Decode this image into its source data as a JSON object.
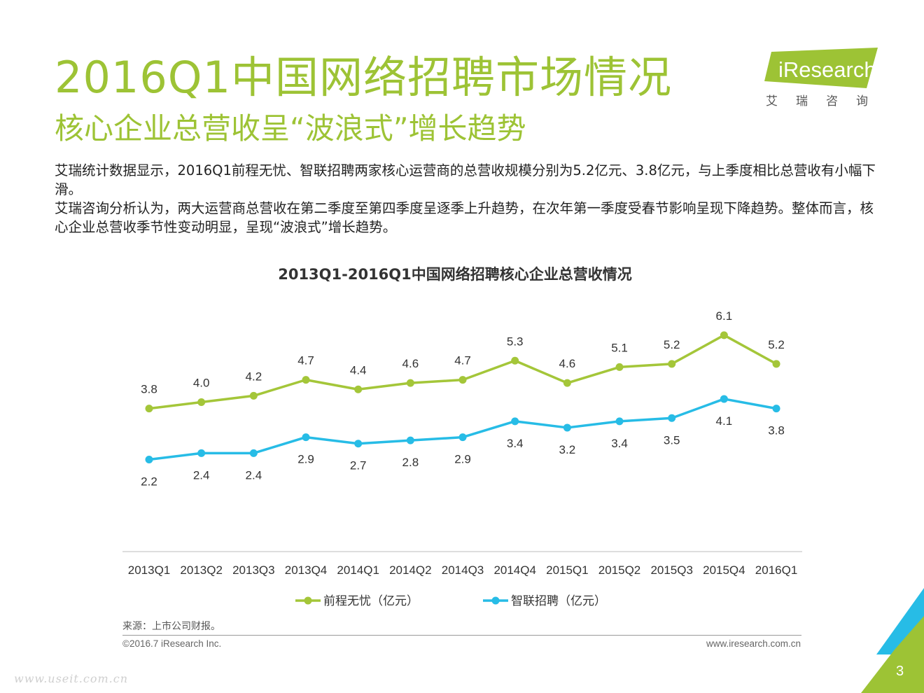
{
  "header": {
    "title": "2016Q1中国网络招聘市场情况",
    "subtitle": "核心企业总营收呈“波浪式”增长趋势"
  },
  "logo": {
    "brand": "iResearch",
    "subtext": "艾瑞咨询"
  },
  "paragraphs": {
    "p1": "艾瑞统计数据显示，2016Q1前程无忧、智联招聘两家核心运营商的总营收规模分别为5.2亿元、3.8亿元，与上季度相比总营收有小幅下滑。",
    "p2": "艾瑞咨询分析认为，两大运营商总营收在第二季度至第四季度呈逐季上升趋势，在次年第一季度受春节影响呈现下降趋势。整体而言，核心企业总营收季节性变动明显，呈现“波浪式”增长趋势。"
  },
  "colors": {
    "title_green": "#9dc335",
    "series1": "#a4c639",
    "series2": "#27bce6"
  },
  "chart_data": {
    "type": "line",
    "title": "2013Q1-2016Q1中国网络招聘核心企业总营收情况",
    "categories": [
      "2013Q1",
      "2013Q2",
      "2013Q3",
      "2013Q4",
      "2014Q1",
      "2014Q2",
      "2014Q3",
      "2014Q4",
      "2015Q1",
      "2015Q2",
      "2015Q3",
      "2015Q4",
      "2016Q1"
    ],
    "series": [
      {
        "name": "前程无忧（亿元）",
        "color": "#a4c639",
        "label_position": "above",
        "values": [
          3.8,
          4.0,
          4.2,
          4.7,
          4.4,
          4.6,
          4.7,
          5.3,
          4.6,
          5.1,
          5.2,
          6.1,
          5.2
        ],
        "labels": [
          "3.8",
          "4.0",
          "4.2",
          "4.7",
          "4.4",
          "4.6",
          "4.7",
          "5.3",
          "4.6",
          "5.1",
          "5.2",
          "6.1",
          "5.2"
        ]
      },
      {
        "name": "智联招聘（亿元）",
        "color": "#27bce6",
        "label_position": "below",
        "values": [
          2.2,
          2.4,
          2.4,
          2.9,
          2.7,
          2.8,
          2.9,
          3.4,
          3.2,
          3.4,
          3.5,
          4.1,
          3.8
        ],
        "labels": [
          "2.2",
          "2.4",
          "2.4",
          "2.9",
          "2.7",
          "2.8",
          "2.9",
          "3.4",
          "3.2",
          "3.4",
          "3.5",
          "4.1",
          "3.8"
        ]
      }
    ],
    "ylim": [
      0,
      6.5
    ],
    "xlabel": "",
    "ylabel": "",
    "grid": false,
    "legend": "bottom-center"
  },
  "footer": {
    "source": "来源：上市公司财报。",
    "copyright": "©2016.7 iResearch Inc.",
    "website": "www.iresearch.com.cn",
    "page_number": "3",
    "watermark": "www.useit.com.cn"
  }
}
